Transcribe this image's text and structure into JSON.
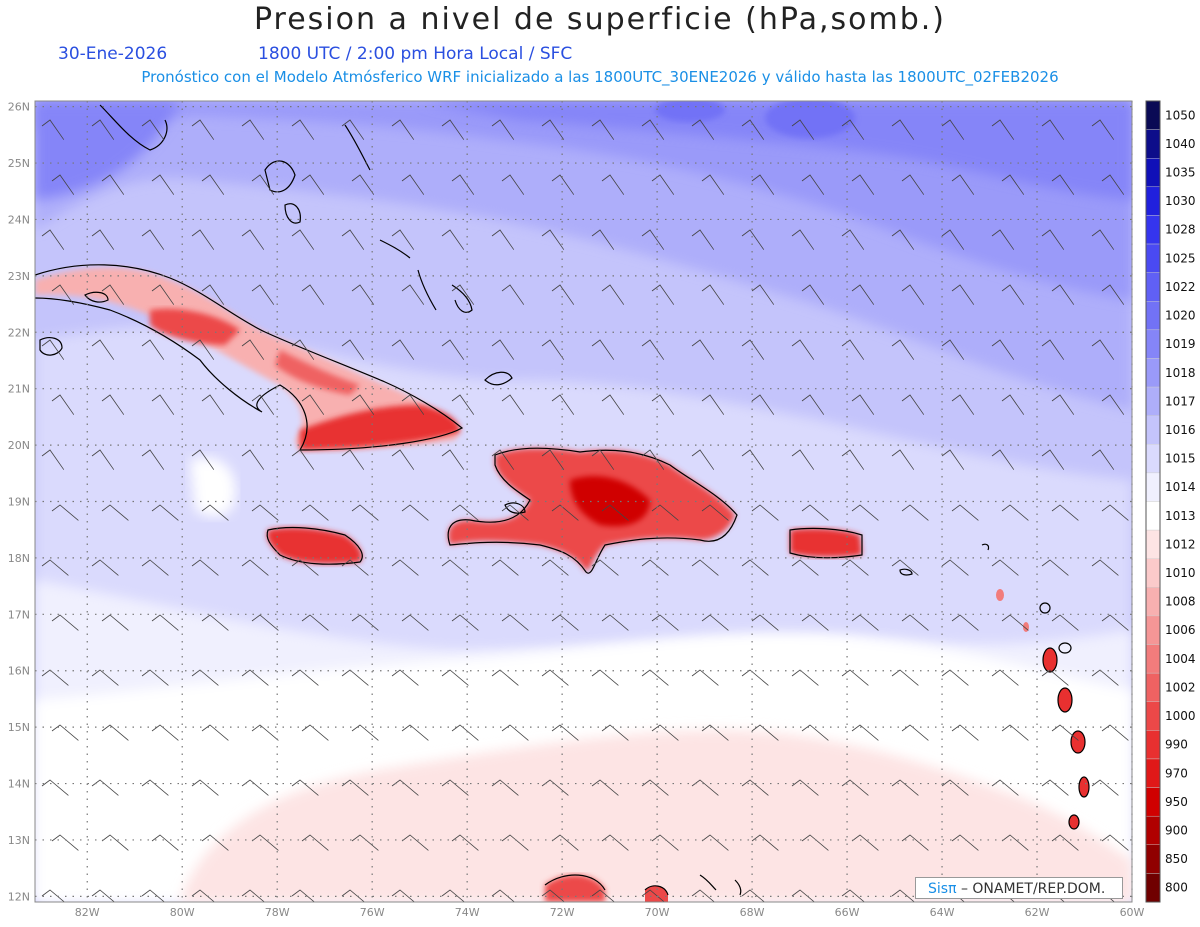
{
  "header": {
    "title": "Presion a nivel de superficie (hPa,somb.)",
    "date": "30-Ene-2026",
    "time_info": "1800 UTC / 2:00 pm Hora Local / SFC",
    "model_info": "Pronóstico con el Modelo Atmósferico WRF inicializado a las 1800UTC_30ENE2026 y válido hasta las  1800UTC_02FEB2026"
  },
  "credit": {
    "brand": "Sisπ",
    "text": "– ONAMET/REP.DOM."
  },
  "map_data": {
    "lon_range": [
      -83.1,
      -60
    ],
    "lat_range": [
      11.9,
      26.1
    ],
    "x_ticks": [
      "82W",
      "80W",
      "78W",
      "76W",
      "74W",
      "72W",
      "70W",
      "68W",
      "66W",
      "64W",
      "62W",
      "60W"
    ],
    "y_ticks": [
      "12N",
      "13N",
      "14N",
      "15N",
      "16N",
      "17N",
      "18N",
      "19N",
      "20N",
      "21N",
      "22N",
      "23N",
      "24N",
      "25N",
      "26N"
    ],
    "grid": "dotted"
  },
  "legend": {
    "labels": [
      "1050",
      "1040",
      "1035",
      "1030",
      "1028",
      "1025",
      "1022",
      "1020",
      "1019",
      "1018",
      "1017",
      "1016",
      "1015",
      "1014",
      "1013",
      "1012",
      "1010",
      "1008",
      "1006",
      "1004",
      "1002",
      "1000",
      "990",
      "970",
      "950",
      "900",
      "850",
      "800"
    ],
    "colors": [
      "#0a0a55",
      "#0d0d8a",
      "#1010b8",
      "#2020dd",
      "#3535ee",
      "#4a4af2",
      "#6060f5",
      "#7272f6",
      "#8585f8",
      "#9a9af9",
      "#aeaefa",
      "#c4c4fb",
      "#dadafd",
      "#f0f0fe",
      "#ffffff",
      "#fde4e4",
      "#fbcaca",
      "#f8b0b0",
      "#f59696",
      "#f27c7c",
      "#ef6262",
      "#ec4848",
      "#e83030",
      "#e01818",
      "#d00000",
      "#b00000",
      "#900000",
      "#700000"
    ]
  }
}
